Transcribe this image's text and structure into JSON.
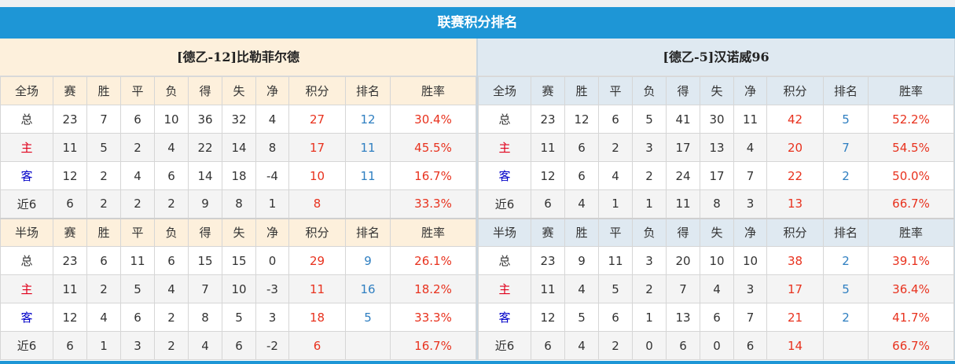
{
  "title": "联赛积分排名",
  "columns_full": [
    "全场",
    "赛",
    "胜",
    "平",
    "负",
    "得",
    "失",
    "净",
    "积分",
    "排名",
    "胜率"
  ],
  "columns_half": [
    "半场",
    "赛",
    "胜",
    "平",
    "负",
    "得",
    "失",
    "净",
    "积分",
    "排名",
    "胜率"
  ],
  "colors": {
    "header_blue": "#1e96d6",
    "points_red": "#e8321e",
    "rank_blue": "#2f7fc1",
    "home_red": "#e0001b",
    "away_blue": "#0000c8"
  },
  "teams": [
    {
      "name": "[德乙-12]比勒菲尔德",
      "full": [
        [
          "总",
          "23",
          "7",
          "6",
          "10",
          "36",
          "32",
          "4",
          "27",
          "12",
          "30.4%"
        ],
        [
          "主",
          "11",
          "5",
          "2",
          "4",
          "22",
          "14",
          "8",
          "17",
          "11",
          "45.5%"
        ],
        [
          "客",
          "12",
          "2",
          "4",
          "6",
          "14",
          "18",
          "-4",
          "10",
          "11",
          "16.7%"
        ],
        [
          "近6",
          "6",
          "2",
          "2",
          "2",
          "9",
          "8",
          "1",
          "8",
          "",
          "33.3%"
        ]
      ],
      "half": [
        [
          "总",
          "23",
          "6",
          "11",
          "6",
          "15",
          "15",
          "0",
          "29",
          "9",
          "26.1%"
        ],
        [
          "主",
          "11",
          "2",
          "5",
          "4",
          "7",
          "10",
          "-3",
          "11",
          "16",
          "18.2%"
        ],
        [
          "客",
          "12",
          "4",
          "6",
          "2",
          "8",
          "5",
          "3",
          "18",
          "5",
          "33.3%"
        ],
        [
          "近6",
          "6",
          "1",
          "3",
          "2",
          "4",
          "6",
          "-2",
          "6",
          "",
          "16.7%"
        ]
      ]
    },
    {
      "name": "[德乙-5]汉诺威96",
      "full": [
        [
          "总",
          "23",
          "12",
          "6",
          "5",
          "41",
          "30",
          "11",
          "42",
          "5",
          "52.2%"
        ],
        [
          "主",
          "11",
          "6",
          "2",
          "3",
          "17",
          "13",
          "4",
          "20",
          "7",
          "54.5%"
        ],
        [
          "客",
          "12",
          "6",
          "4",
          "2",
          "24",
          "17",
          "7",
          "22",
          "2",
          "50.0%"
        ],
        [
          "近6",
          "6",
          "4",
          "1",
          "1",
          "11",
          "8",
          "3",
          "13",
          "",
          "66.7%"
        ]
      ],
      "half": [
        [
          "总",
          "23",
          "9",
          "11",
          "3",
          "20",
          "10",
          "10",
          "38",
          "2",
          "39.1%"
        ],
        [
          "主",
          "11",
          "4",
          "5",
          "2",
          "7",
          "4",
          "3",
          "17",
          "5",
          "36.4%"
        ],
        [
          "客",
          "12",
          "5",
          "6",
          "1",
          "13",
          "6",
          "7",
          "21",
          "2",
          "41.7%"
        ],
        [
          "近6",
          "6",
          "4",
          "2",
          "0",
          "6",
          "0",
          "6",
          "14",
          "",
          "66.7%"
        ]
      ]
    }
  ]
}
